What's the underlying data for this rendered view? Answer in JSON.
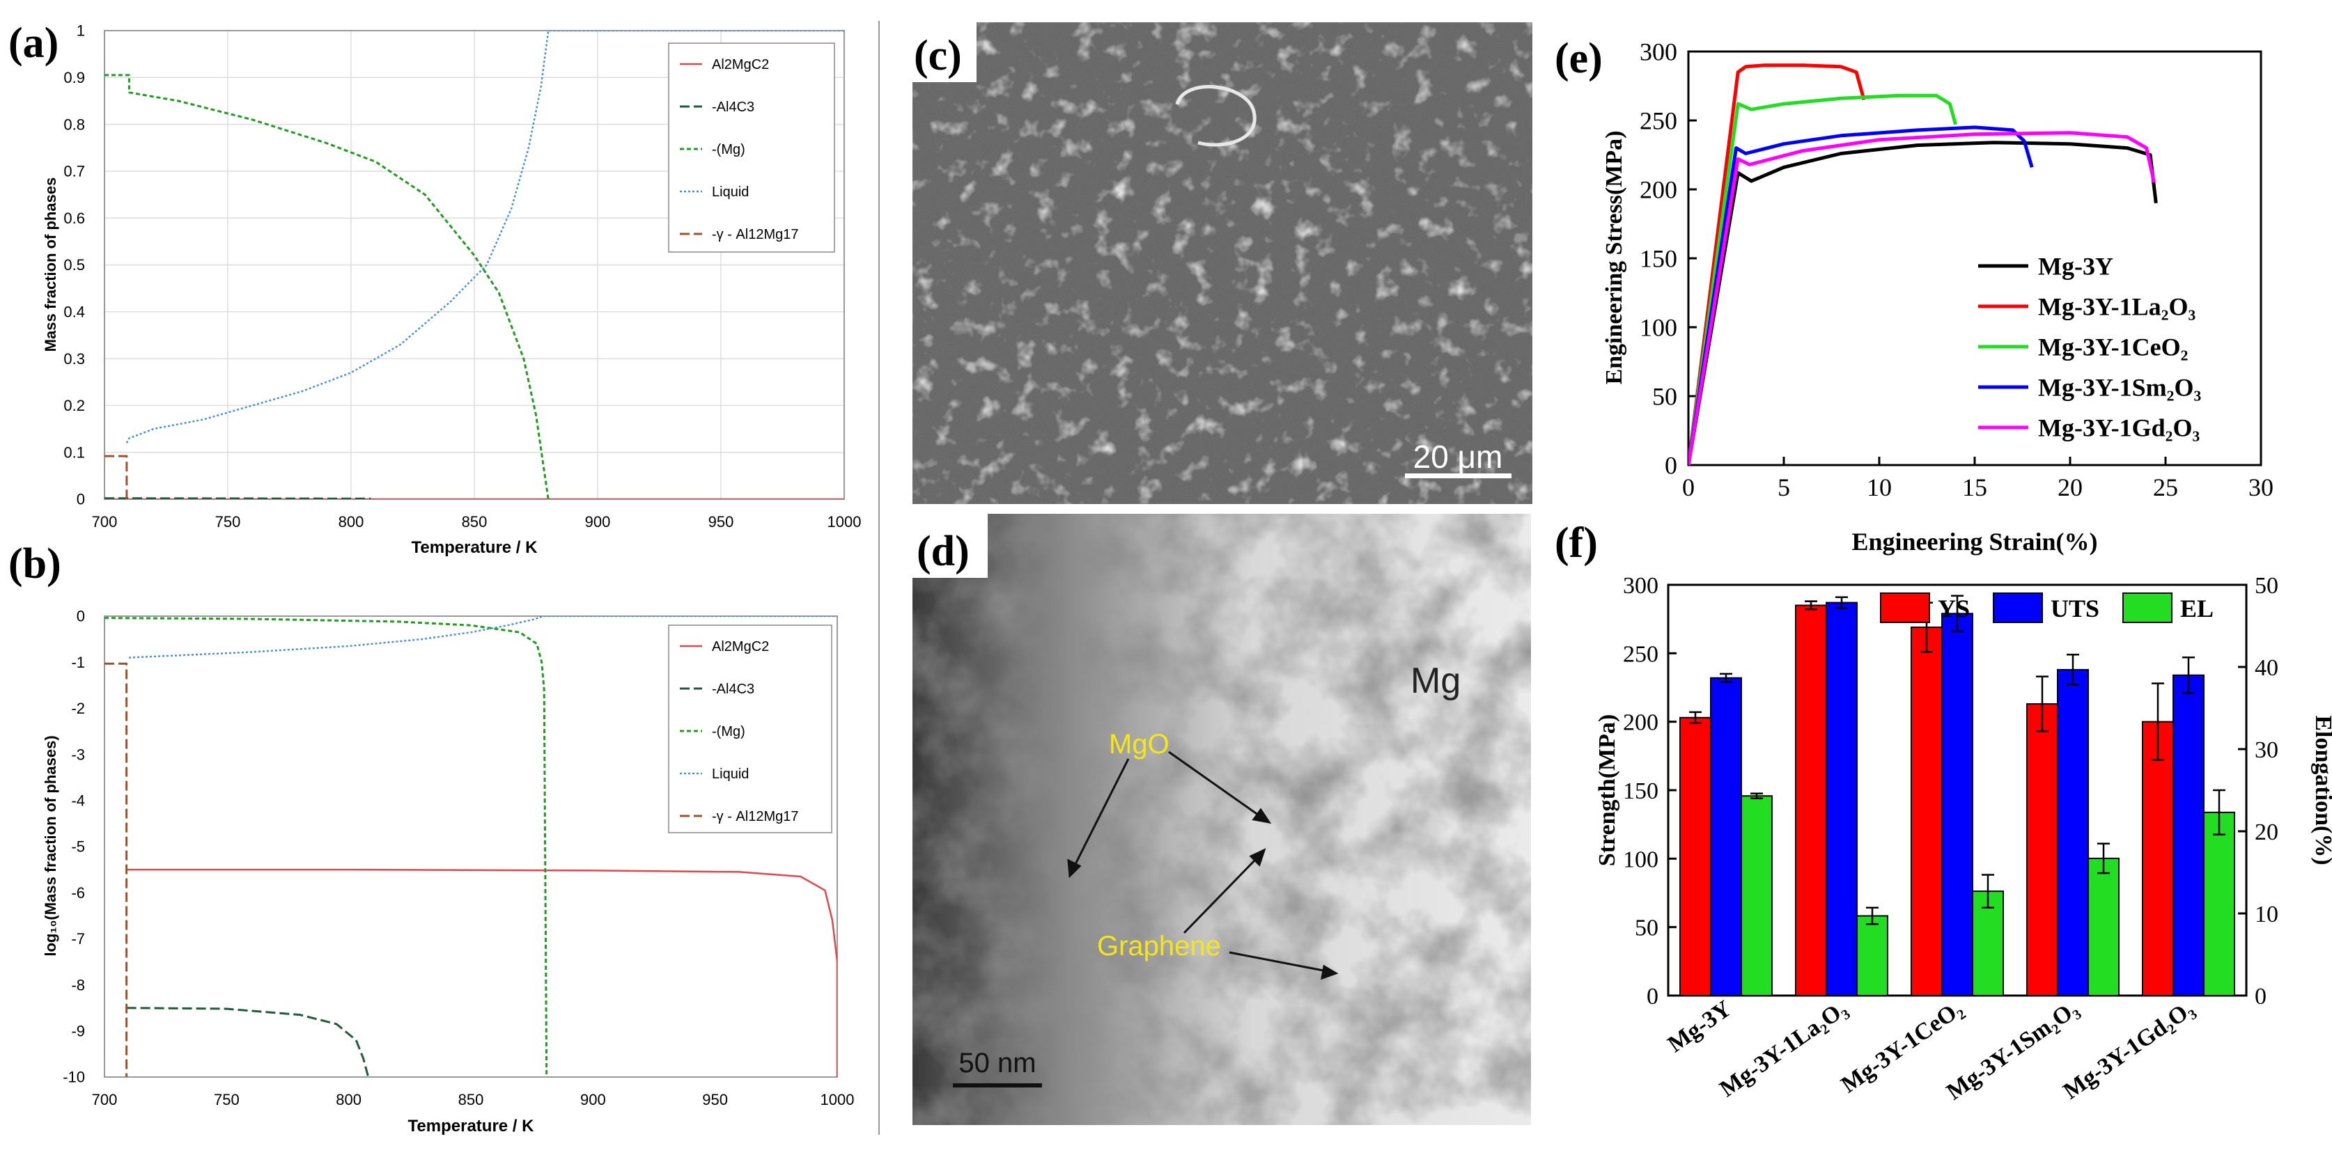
{
  "chart_data": [
    {
      "panel": "(a)",
      "type": "line",
      "xlabel": "Temperature / K",
      "ylabel": "Mass fraction of phases",
      "xlim": [
        700,
        1000
      ],
      "ylim": [
        0,
        1
      ],
      "xticks": [
        700,
        750,
        800,
        850,
        900,
        950,
        1000
      ],
      "yticks": [
        0,
        0.1,
        0.2,
        0.3,
        0.4,
        0.5,
        0.6,
        0.7,
        0.8,
        0.9,
        1
      ],
      "grid": true,
      "legend_position": "top-right",
      "series": [
        {
          "name": "Al2MgC2",
          "color": "#e0474c",
          "x": [
            700,
            1000
          ],
          "y": [
            0,
            0
          ]
        },
        {
          "name": "-Al4C3",
          "color": "#1e5c3a",
          "x": [
            700,
            808
          ],
          "y": [
            0.002,
            0.001
          ]
        },
        {
          "name": "-(Mg)",
          "color": "#1e9e1e",
          "x": [
            700,
            710,
            710,
            730,
            760,
            790,
            810,
            830,
            850,
            860,
            870,
            875,
            880
          ],
          "y": [
            0.905,
            0.905,
            0.868,
            0.85,
            0.81,
            0.76,
            0.72,
            0.65,
            0.52,
            0.44,
            0.3,
            0.18,
            0
          ]
        },
        {
          "name": "Liquid",
          "color": "#4a90d9",
          "x": [
            709,
            710,
            720,
            740,
            760,
            780,
            800,
            820,
            840,
            855,
            865,
            872,
            877,
            880,
            1000
          ],
          "y": [
            0.12,
            0.13,
            0.15,
            0.17,
            0.2,
            0.23,
            0.27,
            0.33,
            0.42,
            0.5,
            0.62,
            0.75,
            0.88,
            1,
            1
          ]
        },
        {
          "name": "-γ - Al12Mg17",
          "color": "#a0522d",
          "x": [
            700,
            709,
            709
          ],
          "y": [
            0.092,
            0.092,
            0
          ]
        }
      ]
    },
    {
      "panel": "(b)",
      "type": "line",
      "xlabel": "Temperature / K",
      "ylabel": "log₁₀(Mass fraction of phases)",
      "xlim": [
        700,
        1000
      ],
      "ylim": [
        -10,
        0
      ],
      "xticks": [
        700,
        750,
        800,
        850,
        900,
        950,
        1000
      ],
      "yticks": [
        0,
        -1,
        -2,
        -3,
        -4,
        -5,
        -6,
        -7,
        -8,
        -9,
        -10
      ],
      "legend_position": "top-right",
      "series": [
        {
          "name": "Al2MgC2",
          "color": "#e0474c",
          "x": [
            709,
            800,
            900,
            960,
            985,
            995,
            998,
            1000,
            1000
          ],
          "y": [
            -5.5,
            -5.5,
            -5.52,
            -5.55,
            -5.65,
            -5.95,
            -6.6,
            -7.5,
            -10
          ]
        },
        {
          "name": "-Al4C3",
          "color": "#1e5c3a",
          "x": [
            709,
            750,
            780,
            795,
            803,
            806,
            808
          ],
          "y": [
            -8.5,
            -8.52,
            -8.65,
            -8.85,
            -9.2,
            -9.6,
            -10
          ]
        },
        {
          "name": "-(Mg)",
          "color": "#1e9e1e",
          "x": [
            700,
            760,
            820,
            850,
            870,
            877,
            879,
            880,
            881
          ],
          "y": [
            -0.04,
            -0.06,
            -0.12,
            -0.2,
            -0.35,
            -0.6,
            -1.0,
            -1.6,
            -10
          ]
        },
        {
          "name": "Liquid",
          "color": "#4a90d9",
          "x": [
            710,
            760,
            800,
            830,
            850,
            865,
            875,
            880,
            1000
          ],
          "y": [
            -0.9,
            -0.78,
            -0.65,
            -0.5,
            -0.35,
            -0.2,
            -0.08,
            0,
            0
          ]
        },
        {
          "name": "-γ - Al12Mg17",
          "color": "#a0522d",
          "x": [
            700,
            709,
            709
          ],
          "y": [
            -1.03,
            -1.03,
            -10
          ]
        }
      ]
    },
    {
      "panel": "(e)",
      "type": "line",
      "xlabel": "Engineering Strain(%)",
      "ylabel": "Engineering Stress(MPa)",
      "xlim": [
        0,
        30
      ],
      "ylim": [
        0,
        300
      ],
      "xticks": [
        0,
        5,
        10,
        15,
        20,
        25,
        30
      ],
      "yticks": [
        0,
        50,
        100,
        150,
        200,
        250,
        300
      ],
      "legend_position": "bottom-right",
      "series": [
        {
          "name": "Mg-3Y",
          "color": "#000000",
          "x": [
            0,
            2.6,
            3.3,
            5,
            8,
            12,
            16,
            20,
            23,
            24.2,
            24.5
          ],
          "y": [
            0,
            212,
            206,
            216,
            226,
            232,
            234,
            233,
            230,
            225,
            190
          ]
        },
        {
          "name": "Mg-3Y-1La₂O₃",
          "color": "#ff0000",
          "x": [
            0,
            2.6,
            3.0,
            4,
            6,
            8,
            8.8,
            9.0,
            9.2
          ],
          "y": [
            0,
            285,
            289,
            290,
            290,
            289,
            285,
            275,
            265
          ]
        },
        {
          "name": "Mg-3Y-1CeO₂",
          "color": "#22dd22",
          "x": [
            0,
            2.6,
            3.3,
            5,
            8,
            11,
            13,
            13.7,
            14.0
          ],
          "y": [
            0,
            262,
            258,
            262,
            266,
            268,
            268,
            262,
            247
          ]
        },
        {
          "name": "Mg-3Y-1Sm₂O₃",
          "color": "#0000ff",
          "x": [
            0,
            2.5,
            3.0,
            5,
            8,
            12,
            15,
            17,
            17.6,
            18.0
          ],
          "y": [
            0,
            230,
            226,
            233,
            239,
            243,
            245,
            243,
            235,
            216
          ]
        },
        {
          "name": "Mg-3Y-1Gd₂O₃",
          "color": "#ff00ff",
          "x": [
            0,
            2.6,
            3.2,
            6,
            10,
            15,
            20,
            23,
            24.0,
            24.4
          ],
          "y": [
            0,
            222,
            218,
            228,
            236,
            240,
            241,
            238,
            230,
            205
          ]
        }
      ]
    },
    {
      "panel": "(f)",
      "type": "bar",
      "xlabel": "",
      "ylabel": "Strength(MPa)",
      "y2label": "Elongation(%)",
      "ylim": [
        0,
        300
      ],
      "y2lim": [
        0,
        50
      ],
      "yticks": [
        0,
        50,
        100,
        150,
        200,
        250,
        300
      ],
      "y2ticks": [
        0,
        10,
        20,
        30,
        40,
        50
      ],
      "categories": [
        "Mg-3Y",
        "Mg-3Y-1La₂O₃",
        "Mg-3Y-1CeO₂",
        "Mg-3Y-1Sm₂O₃",
        "Mg-3Y-1Gd₂O₃"
      ],
      "legend_position": "top",
      "series": [
        {
          "name": "YS",
          "color": "#ff0000",
          "axis": "left",
          "values": [
            203,
            285,
            269,
            213,
            200
          ],
          "errors": [
            4,
            3,
            18,
            20,
            28
          ]
        },
        {
          "name": "UTS",
          "color": "#0000ff",
          "axis": "left",
          "values": [
            232,
            287,
            279,
            238,
            234
          ],
          "errors": [
            3,
            4,
            13,
            11,
            13
          ]
        },
        {
          "name": "EL",
          "color": "#22dd22",
          "axis": "right",
          "values": [
            24.3,
            9.7,
            12.7,
            16.7,
            22.3
          ],
          "errors": [
            0.3,
            1.0,
            2.0,
            1.8,
            2.7
          ]
        }
      ]
    }
  ],
  "panel_labels": {
    "a": "(a)",
    "b": "(b)",
    "c": "(c)",
    "d": "(d)",
    "e": "(e)",
    "f": "(f)"
  },
  "micrographs": {
    "c_scale_bar": "20 μm",
    "d_scale_bar": "50 nm",
    "d_label_mg": "Mg",
    "d_label_mgo": "MgO",
    "d_label_graphene": "Graphene"
  },
  "colors": {
    "annotation_yellow": "#f5e61a"
  }
}
